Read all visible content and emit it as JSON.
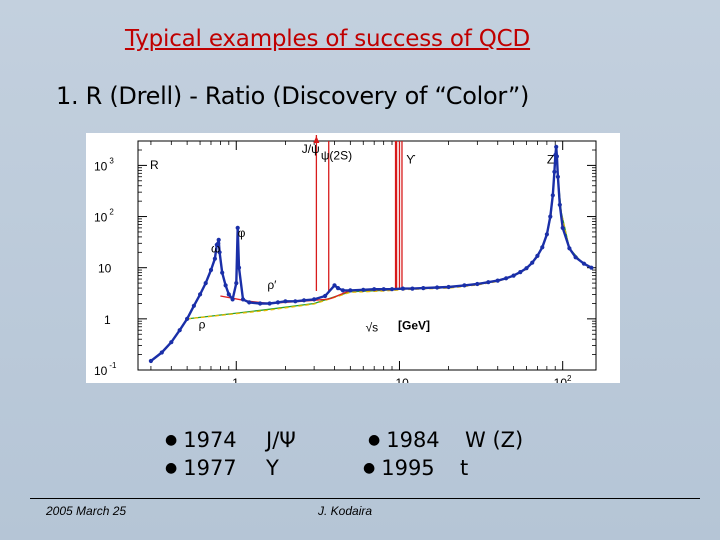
{
  "slide": {
    "title": "Typical examples of success of QCD",
    "subtitle": "1. R (Drell) - Ratio (Discovery of  “Color”)"
  },
  "chart_data": {
    "type": "line",
    "title": "",
    "xlabel": "√s [GeV]",
    "ylabel": "R",
    "x_scale": "log",
    "y_scale": "log",
    "xlim": [
      0.25,
      160
    ],
    "ylim": [
      0.1,
      3000
    ],
    "x_ticks": [
      "1",
      "10",
      "10²"
    ],
    "y_ticks": [
      "10⁻¹",
      "1",
      "10",
      "10²",
      "10³"
    ],
    "resonance_labels": [
      "ρ",
      "ω",
      "φ",
      "ρ′",
      "J/ψ",
      "ψ(2S)",
      "ϒ",
      "Z"
    ],
    "axis_unit": "[GeV]",
    "resonances_gev": {
      "ρ": 0.775,
      "ω": 0.783,
      "φ": 1.02,
      "J/ψ": 3.097,
      "ψ(2S)": 3.686,
      "ϒ": 9.46,
      "Z": 91.19
    },
    "series": [
      {
        "name": "",
        "color": "#1a2fa8",
        "x": [
          0.3,
          0.35,
          0.4,
          0.45,
          0.5,
          0.55,
          0.6,
          0.65,
          0.7,
          0.74,
          0.76,
          0.775,
          0.78,
          0.79,
          0.82,
          0.86,
          0.9,
          0.95,
          1.0,
          1.02,
          1.04,
          1.1,
          1.2,
          1.4,
          1.6,
          1.8,
          2.0,
          2.3,
          2.6,
          3.0,
          3.5,
          4.0,
          4.2,
          4.5,
          5.0,
          6.0,
          7.0,
          8.0,
          9.0,
          10.5,
          12,
          14,
          17,
          20,
          25,
          30,
          35,
          40,
          45,
          50,
          55,
          60,
          65,
          70,
          75,
          80,
          84,
          87,
          89,
          90.2,
          91.2,
          92.2,
          93.5,
          96,
          100,
          110,
          120,
          135,
          150
        ],
        "y": [
          0.15,
          0.22,
          0.35,
          0.6,
          1.0,
          1.8,
          3.0,
          5.0,
          9.0,
          15,
          28,
          30,
          35,
          20,
          8,
          4.5,
          3.0,
          2.4,
          5,
          60,
          10,
          2.4,
          2.1,
          2.0,
          2.0,
          2.1,
          2.2,
          2.2,
          2.3,
          2.4,
          2.8,
          4.5,
          4.0,
          3.6,
          3.6,
          3.7,
          3.8,
          3.8,
          3.8,
          3.9,
          3.9,
          4.0,
          4.1,
          4.2,
          4.5,
          4.8,
          5.2,
          5.6,
          6.2,
          7.0,
          8.2,
          9.8,
          12.5,
          17,
          25,
          45,
          100,
          260,
          750,
          1600,
          2300,
          1500,
          600,
          170,
          60,
          24,
          16,
          12,
          10
        ]
      },
      {
        "name": "",
        "color": "#2aa02a",
        "x": [
          0.5,
          1.5,
          3.0,
          5.0,
          8.0,
          11,
          20,
          30,
          40,
          50,
          60,
          70,
          80,
          85,
          89,
          91.19,
          93.5,
          98,
          110,
          130,
          150
        ],
        "y": [
          1.0,
          1.5,
          2.0,
          3.4,
          3.6,
          3.85,
          4.1,
          4.7,
          5.5,
          6.9,
          9.6,
          16.5,
          43,
          115,
          700,
          2100,
          580,
          120,
          24,
          13,
          10
        ]
      },
      {
        "name": "",
        "color": "#e8b800",
        "x": [
          0.5,
          1.5,
          3.0,
          5.0,
          8.0,
          11,
          20,
          30,
          40,
          50,
          60,
          70,
          80,
          85,
          89,
          91.19,
          93.5,
          98,
          110,
          130,
          150
        ],
        "y": [
          1.0,
          1.45,
          1.95,
          3.3,
          3.5,
          3.75,
          4.0,
          4.6,
          5.4,
          6.8,
          9.4,
          16.2,
          42,
          112,
          690,
          2050,
          570,
          118,
          23,
          13,
          10
        ]
      },
      {
        "name": "",
        "color": "#e02020",
        "x": [
          0.8,
          1.2,
          1.6,
          2.0,
          2.5,
          3.0,
          3.5,
          3.8,
          5.0,
          8.0,
          9.2
        ],
        "y": [
          2.8,
          2.2,
          2.0,
          2.1,
          2.2,
          2.3,
          2.4,
          2.5,
          3.6,
          3.7,
          3.75
        ]
      }
    ]
  },
  "milestones": [
    {
      "year": "1974",
      "label": "J/Ψ"
    },
    {
      "year": "1977",
      "label": "Υ"
    },
    {
      "year": "1984",
      "label": "W (Z)"
    },
    {
      "year": "1995",
      "label": "t"
    }
  ],
  "footer": {
    "date": "2005 March 25",
    "author": "J. Kodaira"
  }
}
